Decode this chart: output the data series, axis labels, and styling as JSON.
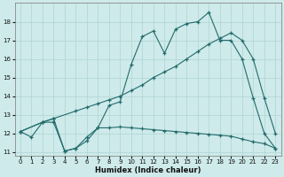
{
  "xlabel": "Humidex (Indice chaleur)",
  "bg_color": "#ceeaea",
  "grid_color": "#afd4d4",
  "line_color": "#236b6b",
  "xlim": [
    -0.5,
    23.5
  ],
  "ylim": [
    10.8,
    19.0
  ],
  "yticks": [
    11,
    12,
    13,
    14,
    15,
    16,
    17,
    18
  ],
  "xticks": [
    0,
    1,
    2,
    3,
    4,
    5,
    6,
    7,
    8,
    9,
    10,
    11,
    12,
    13,
    14,
    15,
    16,
    17,
    18,
    19,
    20,
    21,
    22,
    23
  ],
  "line1_x": [
    0,
    1,
    2,
    3,
    4,
    5,
    6,
    7,
    8,
    9,
    10,
    11,
    12,
    13,
    14,
    15,
    16,
    17,
    18,
    19,
    20,
    21,
    22,
    23
  ],
  "line1_y": [
    12.1,
    11.8,
    12.6,
    12.6,
    11.05,
    11.2,
    11.6,
    12.3,
    12.3,
    12.35,
    12.3,
    12.25,
    12.2,
    12.15,
    12.1,
    12.05,
    12.0,
    11.95,
    11.9,
    11.85,
    11.7,
    11.55,
    11.45,
    11.2
  ],
  "line2_x": [
    0,
    2,
    3,
    5,
    6,
    7,
    8,
    9,
    10,
    11,
    12,
    13,
    14,
    15,
    16,
    17,
    18,
    19,
    20,
    21,
    22,
    23
  ],
  "line2_y": [
    12.1,
    12.6,
    12.8,
    13.2,
    13.4,
    13.6,
    13.8,
    14.0,
    14.3,
    14.6,
    15.0,
    15.3,
    15.6,
    16.0,
    16.4,
    16.8,
    17.1,
    17.4,
    17.0,
    16.0,
    13.9,
    12.0
  ],
  "line3_x": [
    0,
    2,
    3,
    4,
    5,
    6,
    7,
    8,
    9,
    10,
    11,
    12,
    13,
    14,
    15,
    16,
    17,
    18,
    19,
    20,
    21,
    22,
    23
  ],
  "line3_y": [
    12.1,
    12.6,
    12.8,
    11.05,
    11.2,
    11.8,
    12.3,
    13.5,
    13.7,
    15.7,
    17.2,
    17.5,
    16.3,
    17.6,
    17.9,
    18.0,
    18.5,
    17.0,
    17.0,
    16.0,
    13.9,
    12.0,
    11.2
  ]
}
